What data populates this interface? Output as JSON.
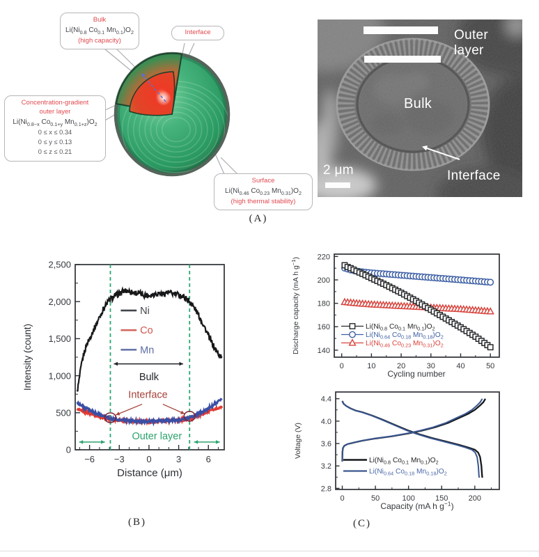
{
  "panel_a": {
    "label": "(A)",
    "callouts": {
      "bulk": {
        "title": "Bulk",
        "formula": "Li(Ni_{0.8} Co_{0.1} Mn_{0.1})O_{2}",
        "note": "(high capacity)"
      },
      "interface": {
        "title": "Interface"
      },
      "gradient": {
        "title_line1": "Concentration-gradient",
        "title_line2": "outer layer",
        "formula": "Li(Ni_{0.8−x} Co_{0.1+y} Mn_{0.1+z})O_{2}",
        "constraints": [
          "0 ≤ x ≤ 0.34",
          "0 ≤ y ≤ 0.13",
          "0 ≤ z ≤ 0.21"
        ]
      },
      "surface": {
        "title": "Surface",
        "formula": "Li(Ni_{0.46} Co_{0.23} Mn_{0.31})O_{2}",
        "note": "(high thermal stability)"
      }
    },
    "sem": {
      "outer_layer": "Outer layer",
      "bulk": "Bulk",
      "interface": "Interface",
      "scale": "2 μm"
    }
  },
  "panel_b": {
    "label": "(B)"
  },
  "panel_c": {
    "label": "(C)"
  },
  "chart_data": [
    {
      "id": "intensity",
      "type": "line",
      "xlabel": "Distance (μm)",
      "ylabel": "Intensity (count)",
      "xlim": [
        -7.45,
        7.6
      ],
      "ylim": [
        0,
        2500
      ],
      "xticks": [
        -6,
        -3,
        0,
        3,
        6
      ],
      "xtick_labels": [
        "−6",
        "−3",
        "0",
        "3",
        "6"
      ],
      "yticks": [
        0,
        500,
        1000,
        1500,
        2000,
        2500
      ],
      "ytick_labels": [
        "0",
        "500",
        "1,000",
        "1,500",
        "2,000",
        "2,500"
      ],
      "minor_x_step": 1,
      "minor_y_step": 250,
      "legend_position": "upper-center-inside",
      "grid": false,
      "series": [
        {
          "name": "Ni",
          "color": "#17181a",
          "points": [
            [
              -7.25,
              780
            ],
            [
              -7.1,
              900
            ],
            [
              -6.9,
              1080
            ],
            [
              -6.7,
              1230
            ],
            [
              -6.5,
              1330
            ],
            [
              -6.3,
              1420
            ],
            [
              -6.0,
              1500
            ],
            [
              -5.7,
              1590
            ],
            [
              -5.4,
              1670
            ],
            [
              -5.0,
              1790
            ],
            [
              -4.6,
              1900
            ],
            [
              -4.2,
              1990
            ],
            [
              -3.9,
              2030
            ],
            [
              -3.6,
              2060
            ],
            [
              -3.3,
              2090
            ],
            [
              -3.0,
              2110
            ],
            [
              -2.6,
              2140
            ],
            [
              -2.2,
              2150
            ],
            [
              -1.8,
              2130
            ],
            [
              -1.4,
              2120
            ],
            [
              -1.0,
              2110
            ],
            [
              -0.6,
              2095
            ],
            [
              -0.2,
              2085
            ],
            [
              0.2,
              2090
            ],
            [
              0.6,
              2105
            ],
            [
              1.0,
              2115
            ],
            [
              1.4,
              2100
            ],
            [
              1.8,
              2125
            ],
            [
              2.2,
              2115
            ],
            [
              2.6,
              2100
            ],
            [
              3.0,
              2090
            ],
            [
              3.4,
              2070
            ],
            [
              3.8,
              2040
            ],
            [
              4.1,
              2000
            ],
            [
              4.4,
              1950
            ],
            [
              4.8,
              1870
            ],
            [
              5.2,
              1770
            ],
            [
              5.6,
              1660
            ],
            [
              6.0,
              1540
            ],
            [
              6.4,
              1430
            ],
            [
              6.8,
              1330
            ],
            [
              7.1,
              1280
            ],
            [
              7.35,
              1245
            ]
          ]
        },
        {
          "name": "Co",
          "color": "#e23b32",
          "points": [
            [
              -7.25,
              545
            ],
            [
              -6.8,
              525
            ],
            [
              -6.3,
              505
            ],
            [
              -5.8,
              480
            ],
            [
              -5.3,
              455
            ],
            [
              -4.8,
              440
            ],
            [
              -4.3,
              425
            ],
            [
              -3.9,
              415
            ],
            [
              -3.4,
              405
            ],
            [
              -2.9,
              398
            ],
            [
              -2.4,
              392
            ],
            [
              -1.9,
              388
            ],
            [
              -1.4,
              384
            ],
            [
              -0.9,
              381
            ],
            [
              -0.4,
              379
            ],
            [
              0.1,
              378
            ],
            [
              0.6,
              381
            ],
            [
              1.1,
              384
            ],
            [
              1.6,
              388
            ],
            [
              2.1,
              391
            ],
            [
              2.6,
              394
            ],
            [
              3.1,
              398
            ],
            [
              3.6,
              408
            ],
            [
              4.1,
              425
            ],
            [
              4.6,
              445
            ],
            [
              5.1,
              468
            ],
            [
              5.6,
              495
            ],
            [
              6.1,
              522
            ],
            [
              6.6,
              548
            ],
            [
              7.0,
              565
            ],
            [
              7.35,
              575
            ]
          ]
        },
        {
          "name": "Mn",
          "color": "#3a4fa5",
          "points": [
            [
              -7.25,
              640
            ],
            [
              -6.8,
              595
            ],
            [
              -6.3,
              555
            ],
            [
              -5.8,
              520
            ],
            [
              -5.3,
              488
            ],
            [
              -4.8,
              462
            ],
            [
              -4.3,
              440
            ],
            [
              -3.9,
              425
            ],
            [
              -3.4,
              412
            ],
            [
              -2.9,
              402
            ],
            [
              -2.4,
              396
            ],
            [
              -1.9,
              390
            ],
            [
              -1.4,
              386
            ],
            [
              -0.9,
              383
            ],
            [
              -0.4,
              381
            ],
            [
              0.1,
              380
            ],
            [
              0.6,
              384
            ],
            [
              1.1,
              388
            ],
            [
              1.6,
              392
            ],
            [
              2.1,
              397
            ],
            [
              2.6,
              402
            ],
            [
              3.1,
              408
            ],
            [
              3.6,
              420
            ],
            [
              4.1,
              438
            ],
            [
              4.6,
              462
            ],
            [
              5.1,
              492
            ],
            [
              5.6,
              528
            ],
            [
              6.1,
              568
            ],
            [
              6.6,
              612
            ],
            [
              7.0,
              648
            ],
            [
              7.35,
              672
            ]
          ]
        }
      ],
      "annotations": {
        "dashed_lines_x": [
          -3.9,
          4.1
        ],
        "dashed_color": "#28a873",
        "bulk": {
          "text": "Bulk",
          "span": [
            -3.55,
            3.45
          ],
          "y": 1160,
          "text_pos": [
            0,
            940
          ]
        },
        "interface": {
          "text": "Interface",
          "text_pos": [
            -0.1,
            700
          ],
          "arrows": [
            [
              -0.7,
              615,
              -3.35,
              470
            ],
            [
              1.4,
              615,
              3.6,
              485
            ]
          ],
          "circles": [
            [
              -3.9,
              432
            ],
            [
              4.1,
              452
            ]
          ]
        },
        "outer_layer": {
          "text": "Outer layer",
          "text_pos": [
            0.8,
            140
          ],
          "y": 105,
          "spans": [
            [
              -7.05,
              -4.45
            ],
            [
              4.55,
              7.15
            ]
          ]
        }
      }
    },
    {
      "id": "cycling",
      "type": "scatter",
      "xlabel": "Cycling number",
      "ylabel": "Discharge capacity (mA h g^{−1})",
      "xlim": [
        -2.5,
        53
      ],
      "ylim": [
        134,
        222
      ],
      "xticks": [
        0,
        10,
        20,
        30,
        40,
        50
      ],
      "yticks": [
        140,
        160,
        180,
        200,
        220
      ],
      "minor_x_step": 5,
      "minor_y_step": 10,
      "legend_position": "lower-left-inside",
      "grid": false,
      "series": [
        {
          "name": "Li(Ni_{0.8} Co_{0.1} Mn_{0.1})O_{2}",
          "marker": "square",
          "color": "#26282b",
          "points": [
            [
              1,
              212.5
            ],
            [
              2,
              211
            ],
            [
              3,
              210
            ],
            [
              5,
              207.5
            ],
            [
              8,
              204
            ],
            [
              10,
              201.5
            ],
            [
              15,
              195.5
            ],
            [
              20,
              189
            ],
            [
              25,
              182
            ],
            [
              30,
              174.5
            ],
            [
              35,
              167
            ],
            [
              40,
              159.5
            ],
            [
              45,
              151.5
            ],
            [
              50,
              142.5
            ]
          ]
        },
        {
          "name": "Li(Ni_{0.64} Co_{0.18} Mn_{0.18})O_{2}",
          "marker": "circle",
          "color": "#3d5fa5",
          "points": [
            [
              1,
              210
            ],
            [
              3,
              208.5
            ],
            [
              5,
              207.5
            ],
            [
              10,
              206
            ],
            [
              15,
              205
            ],
            [
              20,
              204
            ],
            [
              25,
              203
            ],
            [
              30,
              202
            ],
            [
              35,
              201
            ],
            [
              40,
              200
            ],
            [
              45,
              199
            ],
            [
              50,
              198
            ]
          ]
        },
        {
          "name": "Li(Ni_{0.46} Co_{0.23} Mn_{0.31})O_{2}",
          "marker": "triangle",
          "color": "#d8433c",
          "points": [
            [
              1,
              181
            ],
            [
              5,
              180
            ],
            [
              10,
              179
            ],
            [
              15,
              178.3
            ],
            [
              20,
              177.6
            ],
            [
              25,
              177
            ],
            [
              30,
              176.3
            ],
            [
              35,
              175.6
            ],
            [
              40,
              175
            ],
            [
              45,
              174
            ],
            [
              50,
              173
            ]
          ]
        }
      ]
    },
    {
      "id": "voltage",
      "type": "line",
      "xlabel": "Capacity (mA h g^{−1})",
      "ylabel": "Voltage (V)",
      "xlim": [
        -10,
        237
      ],
      "ylim": [
        2.78,
        4.52
      ],
      "xticks": [
        0,
        50,
        100,
        150,
        200
      ],
      "yticks": [
        2.8,
        3.2,
        3.6,
        4.0,
        4.4
      ],
      "ytick_labels": [
        "2.8",
        "3.2",
        "3.6",
        "4.0",
        "4.4"
      ],
      "minor_x_step": 25,
      "minor_y_step": 0.2,
      "legend_position": "lower-left-inside",
      "grid": false,
      "series": [
        {
          "name": "Li(Ni_{0.8} Co_{0.1} Mn_{0.1})O_{2}",
          "color": "#14181c",
          "capacity_scale": 1.0
        },
        {
          "name": "Li(Ni_{0.64} Co_{0.18} Mn_{0.18})O_{2}",
          "color": "#3a568f",
          "capacity_scale": 0.978
        }
      ],
      "charge_curve": [
        [
          0,
          3.28
        ],
        [
          0.3,
          3.45
        ],
        [
          1,
          3.52
        ],
        [
          3,
          3.56
        ],
        [
          8,
          3.59
        ],
        [
          15,
          3.61
        ],
        [
          30,
          3.65
        ],
        [
          50,
          3.69
        ],
        [
          75,
          3.73
        ],
        [
          100,
          3.78
        ],
        [
          120,
          3.83
        ],
        [
          140,
          3.89
        ],
        [
          160,
          3.97
        ],
        [
          175,
          4.05
        ],
        [
          190,
          4.13
        ],
        [
          200,
          4.2
        ],
        [
          208,
          4.28
        ],
        [
          213,
          4.34
        ],
        [
          216,
          4.4
        ]
      ],
      "discharge_curve": [
        [
          0,
          4.36
        ],
        [
          2,
          4.31
        ],
        [
          6,
          4.27
        ],
        [
          12,
          4.23
        ],
        [
          20,
          4.19
        ],
        [
          30,
          4.16
        ],
        [
          45,
          4.1
        ],
        [
          60,
          4.03
        ],
        [
          80,
          3.93
        ],
        [
          100,
          3.83
        ],
        [
          115,
          3.77
        ],
        [
          135,
          3.7
        ],
        [
          155,
          3.64
        ],
        [
          175,
          3.58
        ],
        [
          190,
          3.53
        ],
        [
          200,
          3.49
        ],
        [
          205,
          3.44
        ],
        [
          208,
          3.36
        ],
        [
          210,
          3.2
        ],
        [
          211,
          3.02
        ],
        [
          211.5,
          2.99
        ]
      ]
    }
  ]
}
